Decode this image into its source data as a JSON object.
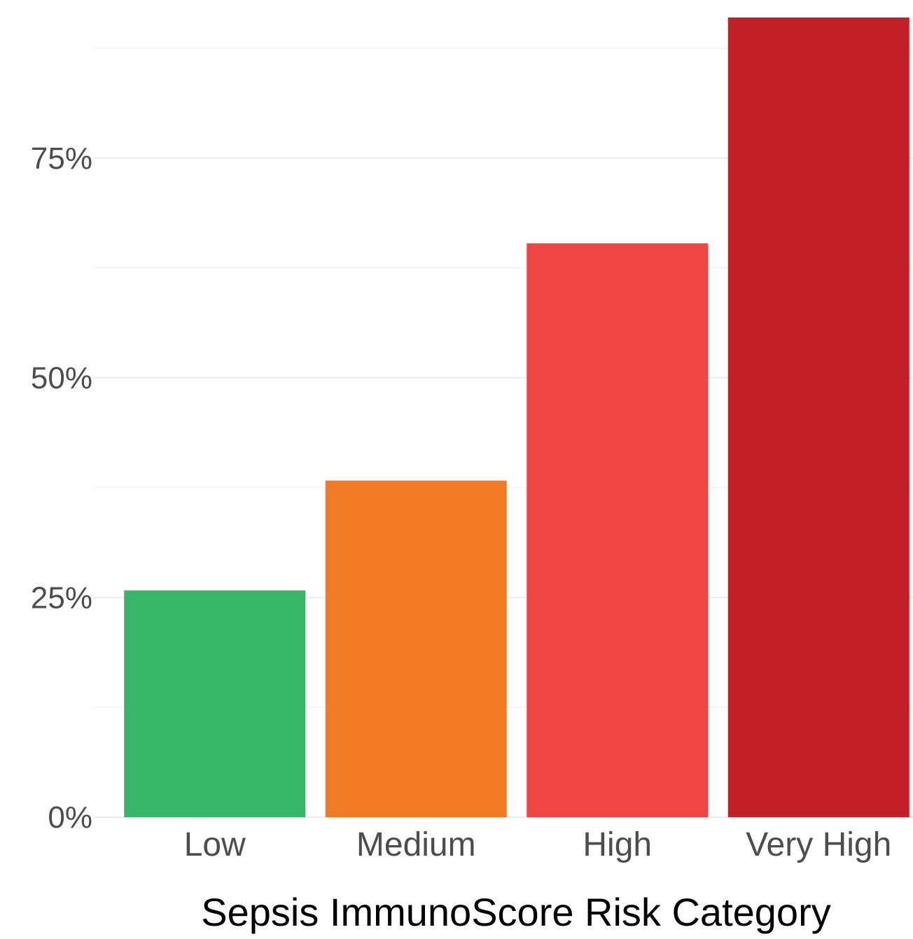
{
  "chart_data": {
    "type": "bar",
    "title": "",
    "xlabel": "Sepsis ImmunoScore Risk Category",
    "ylabel": "",
    "categories": [
      "Low",
      "Medium",
      "High",
      "Very High"
    ],
    "values": [
      25.8,
      38.3,
      65.3,
      91.0
    ],
    "colors": [
      "#36b666",
      "#f37a24",
      "#ef4644",
      "#c21f26"
    ],
    "ylim": [
      0,
      91
    ],
    "yticks": [
      0,
      25,
      50,
      75
    ],
    "ytick_labels": [
      "0%",
      "25%",
      "50%",
      "75%"
    ],
    "y_minor_ticks": [
      12.5,
      37.5,
      62.5,
      87.5
    ],
    "grid": true,
    "legend": "none"
  }
}
